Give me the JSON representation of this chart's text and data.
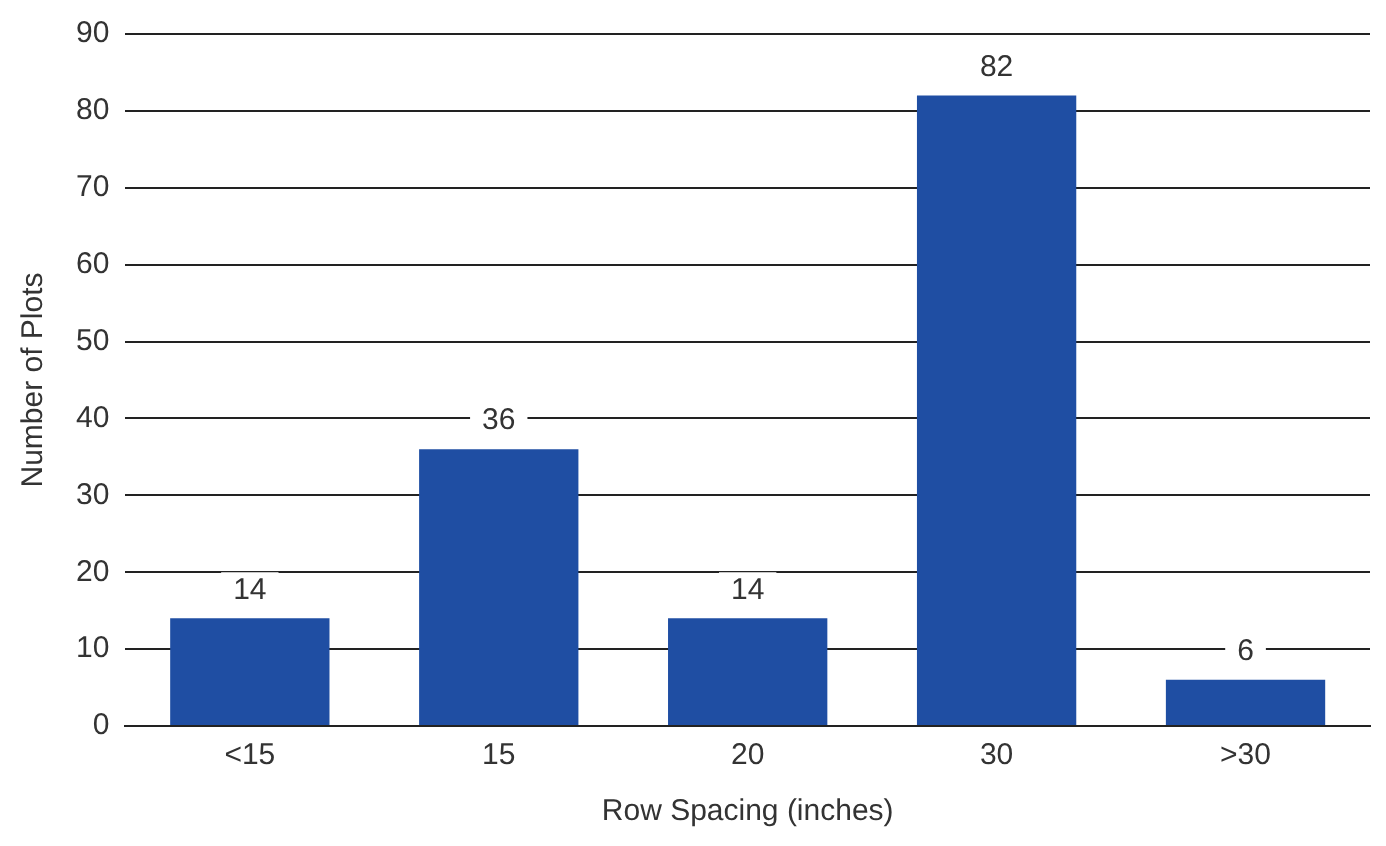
{
  "chart_data": {
    "type": "bar",
    "xlabel": "Row Spacing (inches)",
    "ylabel": "Number of Plots",
    "categories": [
      "<15",
      "15",
      "20",
      "30",
      ">30"
    ],
    "values": [
      14,
      36,
      14,
      82,
      6
    ],
    "color": "#1f4ea3",
    "ylim": [
      0,
      90
    ],
    "yticks": [
      0,
      10,
      20,
      30,
      40,
      50,
      60,
      70,
      80,
      90
    ],
    "grid": "y",
    "data_labels": true,
    "legend": false
  }
}
